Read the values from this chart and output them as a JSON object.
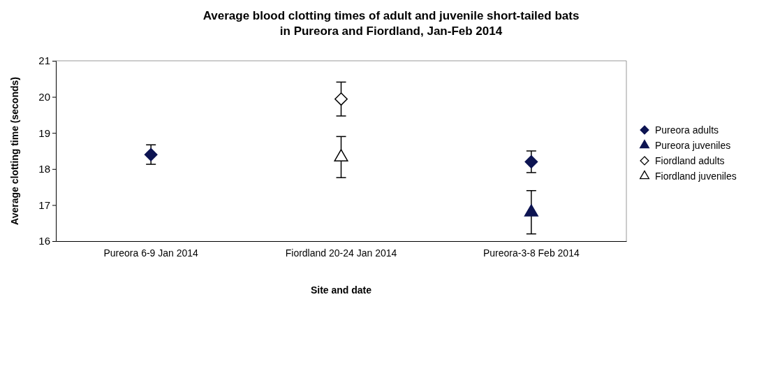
{
  "chart_data": {
    "type": "scatter",
    "title": "Average blood clotting times of adult and juvenile short-tailed bats in Pureora and Fiordland, Jan-Feb 2014",
    "xlabel": "Site and date",
    "ylabel": "Average clotting time (seconds)",
    "categories": [
      "Pureora 6-9 Jan 2014",
      "Fiordland 20-24 Jan 2014",
      "Pureora-3-8 Feb 2014"
    ],
    "ylim": [
      16,
      21
    ],
    "yticks": [
      16,
      17,
      18,
      19,
      20,
      21
    ],
    "grid": false,
    "legend": "right",
    "series": [
      {
        "name": "Pureora adults",
        "color": "#0d1452",
        "marker": "diamond",
        "values": [
          18.4,
          null,
          18.2
        ],
        "errors": [
          0.27,
          null,
          0.3
        ]
      },
      {
        "name": "Pureora juveniles",
        "color": "#0d1452",
        "marker": "triangle",
        "values": [
          null,
          null,
          16.8
        ],
        "errors": [
          null,
          null,
          0.6
        ]
      },
      {
        "name": "Fiordland adults",
        "color": "#ffffff",
        "marker": "diamond",
        "values": [
          null,
          19.94,
          null
        ],
        "errors": [
          null,
          0.47,
          null
        ]
      },
      {
        "name": "Fiordland juveniles",
        "color": "#ffffff",
        "marker": "triangle",
        "values": [
          null,
          18.33,
          null
        ],
        "errors": [
          null,
          0.57,
          null
        ]
      }
    ]
  }
}
